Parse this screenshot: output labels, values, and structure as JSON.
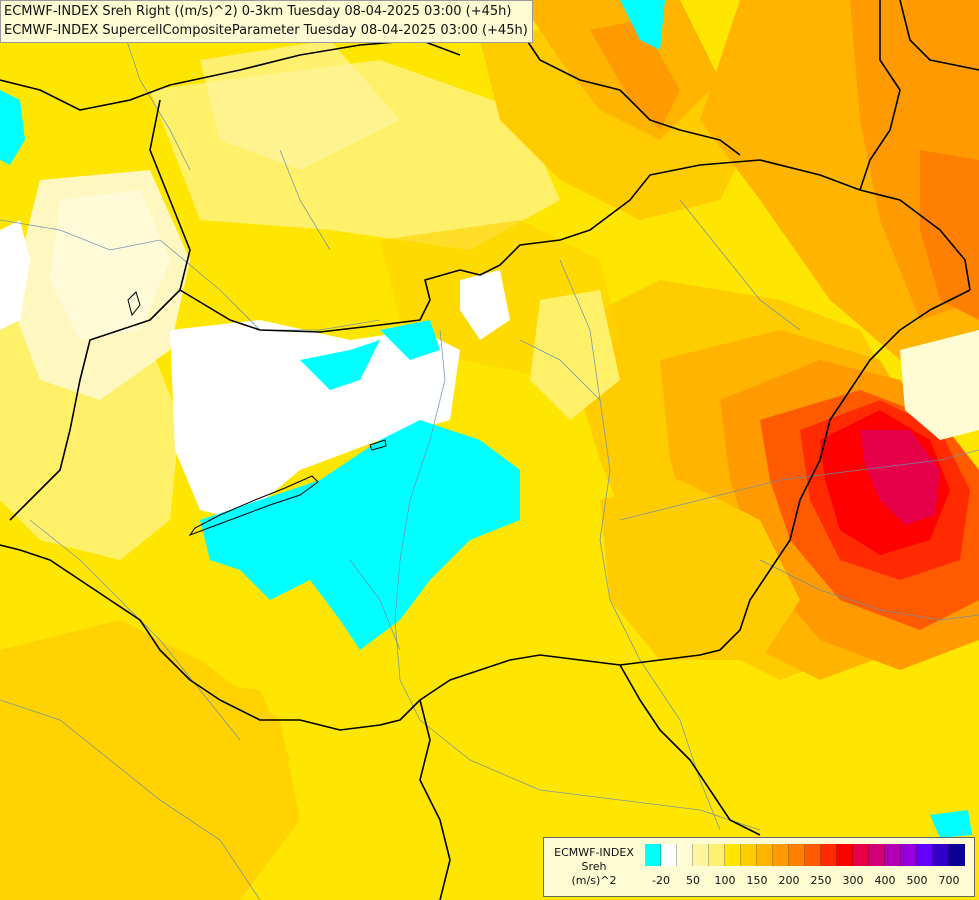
{
  "header": {
    "line1": "ECMWF-INDEX Sreh Right ((m/s)^2) 0-3km Tuesday 08-04-2025 03:00 (+45h)",
    "line2": "ECMWF-INDEX SupercellCompositeParameter Tuesday 08-04-2025 03:00 (+45h)"
  },
  "legend": {
    "line1": "ECMWF-INDEX",
    "line2": "Sreh",
    "line3": "(m/s)^2",
    "colors": [
      "#00ffff",
      "#ffffff",
      "#fffbd2",
      "#fff5a0",
      "#ffef6e",
      "#ffe600",
      "#ffcc00",
      "#ffb400",
      "#ff9a00",
      "#ff8000",
      "#ff5a00",
      "#ff2a00",
      "#ff0000",
      "#e6004a",
      "#d20078",
      "#b400b4",
      "#9600dc",
      "#6400ff",
      "#3200c8",
      "#0a0096"
    ],
    "ticks": [
      {
        "label": "-20",
        "index": 1
      },
      {
        "label": "50",
        "index": 3
      },
      {
        "label": "100",
        "index": 5
      },
      {
        "label": "150",
        "index": 7
      },
      {
        "label": "200",
        "index": 9
      },
      {
        "label": "250",
        "index": 11
      },
      {
        "label": "300",
        "index": 13
      },
      {
        "label": "400",
        "index": 15
      },
      {
        "label": "500",
        "index": 17
      },
      {
        "label": "700",
        "index": 19
      }
    ]
  }
}
